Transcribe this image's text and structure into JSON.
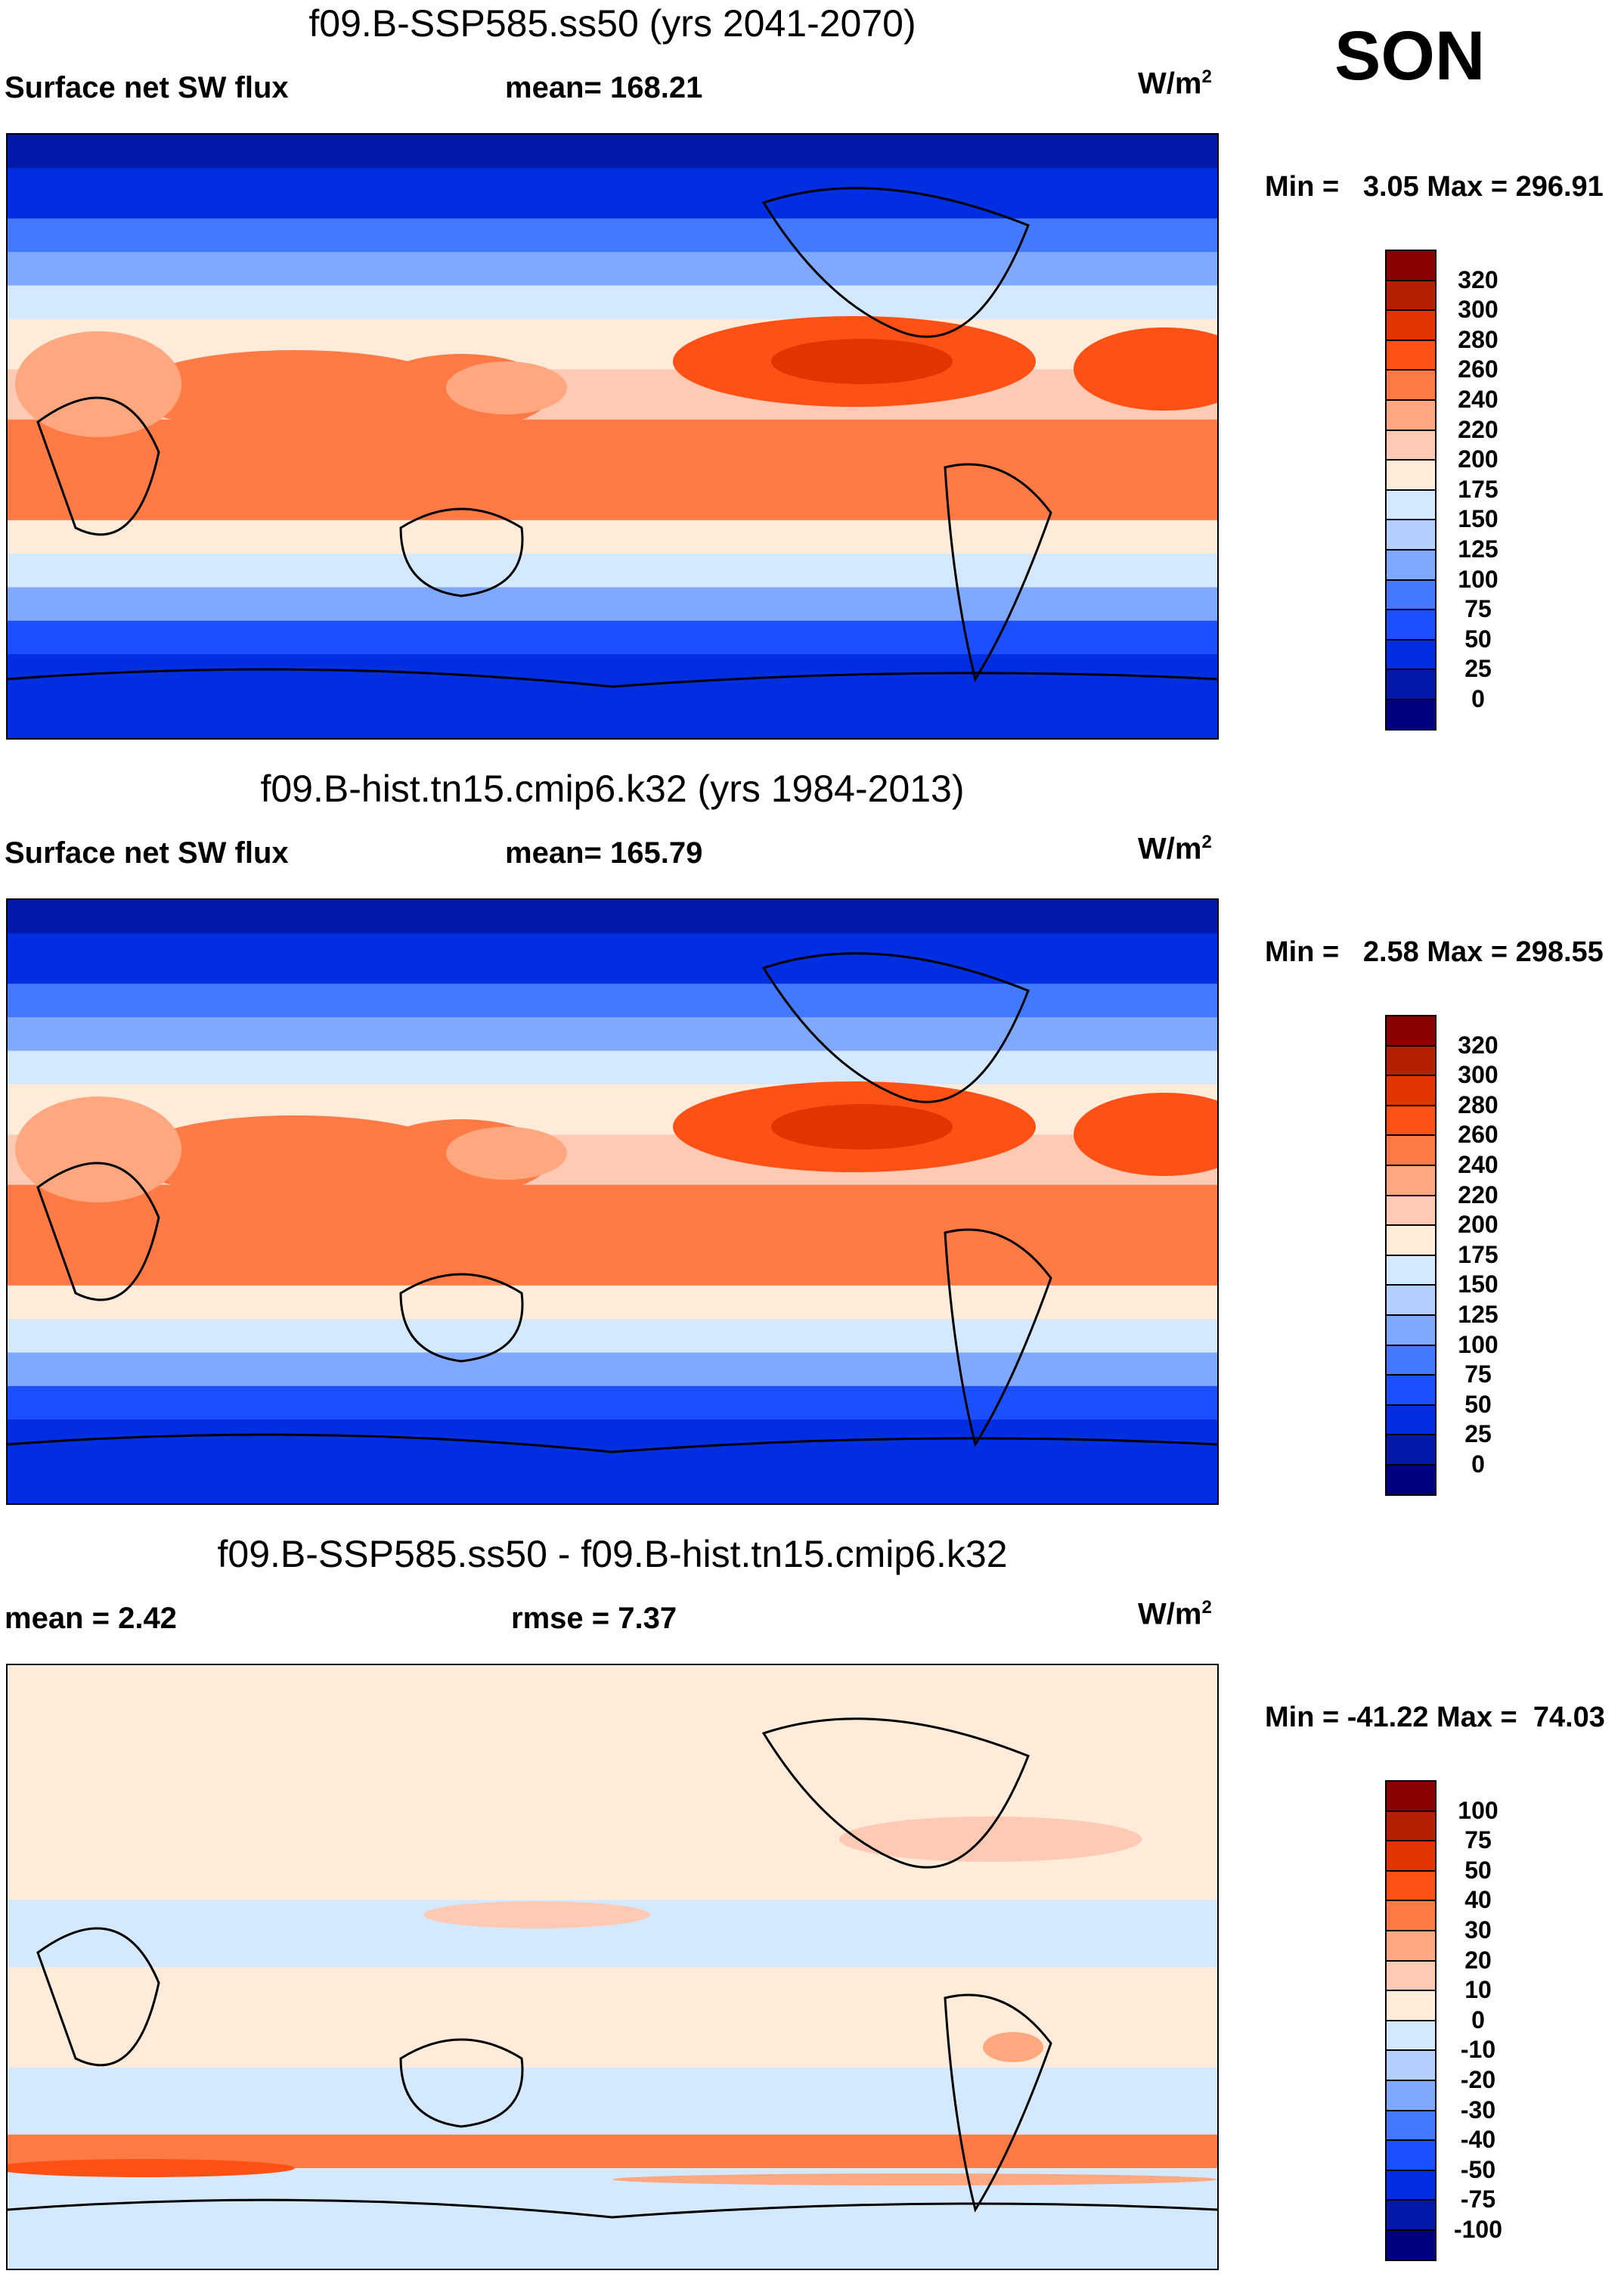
{
  "season": "SON",
  "chart_data": [
    {
      "type": "heatmap",
      "title": "f09.B-SSP585.ss50 (yrs 2041-2070)",
      "left_label": "Surface net SW flux",
      "center_label": "mean= 168.21",
      "units": "W/m",
      "units_sup": "2",
      "min_max": "Min =   3.05 Max = 296.91",
      "colorbar_levels": [
        "320",
        "300",
        "280",
        "260",
        "240",
        "220",
        "200",
        "175",
        "150",
        "125",
        "100",
        "75",
        "50",
        "25",
        "0"
      ],
      "field": [
        {
          "lat_band": "90N-80N",
          "level": 0
        },
        {
          "lat_band": "80N-65N",
          "level": 25
        },
        {
          "lat_band": "65N-55N",
          "level": 75
        },
        {
          "lat_band": "55N-45N",
          "level": 100
        },
        {
          "lat_band": "45N-35N",
          "level": 150
        },
        {
          "lat_band": "35N-20N",
          "level": 175
        },
        {
          "lat_band": "20N-5N",
          "level": 200
        },
        {
          "lat_band": "5N-25S",
          "level": 240
        },
        {
          "lat_band": "25S-35S",
          "level": 175
        },
        {
          "lat_band": "35S-45S",
          "level": 150
        },
        {
          "lat_band": "45S-55S",
          "level": 100
        },
        {
          "lat_band": "55S-65S",
          "level": 50
        },
        {
          "lat_band": "65S-90S",
          "level": 25
        }
      ]
    },
    {
      "type": "heatmap",
      "title": "f09.B-hist.tn15.cmip6.k32 (yrs 1984-2013)",
      "left_label": "Surface net SW flux",
      "center_label": "mean= 165.79",
      "units": "W/m",
      "units_sup": "2",
      "min_max": "Min =   2.58 Max = 298.55",
      "colorbar_levels": [
        "320",
        "300",
        "280",
        "260",
        "240",
        "220",
        "200",
        "175",
        "150",
        "125",
        "100",
        "75",
        "50",
        "25",
        "0"
      ],
      "field": [
        {
          "lat_band": "90N-80N",
          "level": 0
        },
        {
          "lat_band": "80N-65N",
          "level": 25
        },
        {
          "lat_band": "65N-55N",
          "level": 75
        },
        {
          "lat_band": "55N-45N",
          "level": 100
        },
        {
          "lat_band": "45N-35N",
          "level": 150
        },
        {
          "lat_band": "35N-20N",
          "level": 175
        },
        {
          "lat_band": "20N-5N",
          "level": 200
        },
        {
          "lat_band": "5N-25S",
          "level": 240
        },
        {
          "lat_band": "25S-35S",
          "level": 175
        },
        {
          "lat_band": "35S-45S",
          "level": 150
        },
        {
          "lat_band": "45S-55S",
          "level": 100
        },
        {
          "lat_band": "55S-65S",
          "level": 50
        },
        {
          "lat_band": "65S-90S",
          "level": 25
        }
      ]
    },
    {
      "type": "heatmap",
      "title": "f09.B-SSP585.ss50 - f09.B-hist.tn15.cmip6.k32",
      "left_label": "mean =   2.42",
      "center_label": "rmse =   7.37",
      "units": "W/m",
      "units_sup": "2",
      "min_max": "Min = -41.22 Max =  74.03",
      "colorbar_levels": [
        "100",
        "75",
        "50",
        "40",
        "30",
        "20",
        "10",
        "0",
        "-10",
        "-20",
        "-30",
        "-40",
        "-50",
        "-75",
        "-100"
      ],
      "field": [
        {
          "lat_band": "90N-60N",
          "level": 0
        },
        {
          "lat_band": "60N-40N",
          "level": 0
        },
        {
          "lat_band": "40N-20N",
          "level": 0
        },
        {
          "lat_band": "20N-0",
          "level": -10
        },
        {
          "lat_band": "0-30S",
          "level": 0
        },
        {
          "lat_band": "30S-50S",
          "level": -10
        },
        {
          "lat_band": "50S-60S",
          "level": 30
        },
        {
          "lat_band": "60S-90S",
          "level": -10
        }
      ]
    }
  ],
  "colors": [
    "#8b0000",
    "#b52000",
    "#e33400",
    "#ff5115",
    "#ff7a45",
    "#ffa880",
    "#ffcab4",
    "#ffebd9",
    "#d4e9ff",
    "#b3cfff",
    "#80a8ff",
    "#4379ff",
    "#1c4fff",
    "#002ee0",
    "#0019a8",
    "#000080"
  ]
}
